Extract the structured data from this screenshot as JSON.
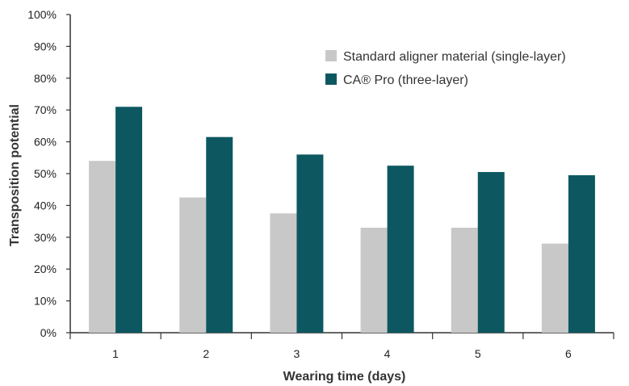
{
  "chart_data": {
    "type": "bar",
    "title": "",
    "xlabel": "Wearing time (days)",
    "ylabel": "Transposition potential",
    "categories": [
      "1",
      "2",
      "3",
      "4",
      "5",
      "6"
    ],
    "series": [
      {
        "name": "Standard aligner material (single-layer)",
        "color": "#c8c8c8",
        "values": [
          54,
          42.5,
          37.5,
          33,
          33,
          28
        ]
      },
      {
        "name": "CA® Pro (three-layer)",
        "color": "#0d5860",
        "values": [
          71,
          61.5,
          56,
          52.5,
          50.5,
          49.5
        ]
      }
    ],
    "ylim": [
      0,
      100
    ],
    "ytick_labels": [
      "0%",
      "10%",
      "20%",
      "30%",
      "40%",
      "50%",
      "60%",
      "70%",
      "80%",
      "90%",
      "100%"
    ],
    "grid": false,
    "legend": "top-right"
  }
}
